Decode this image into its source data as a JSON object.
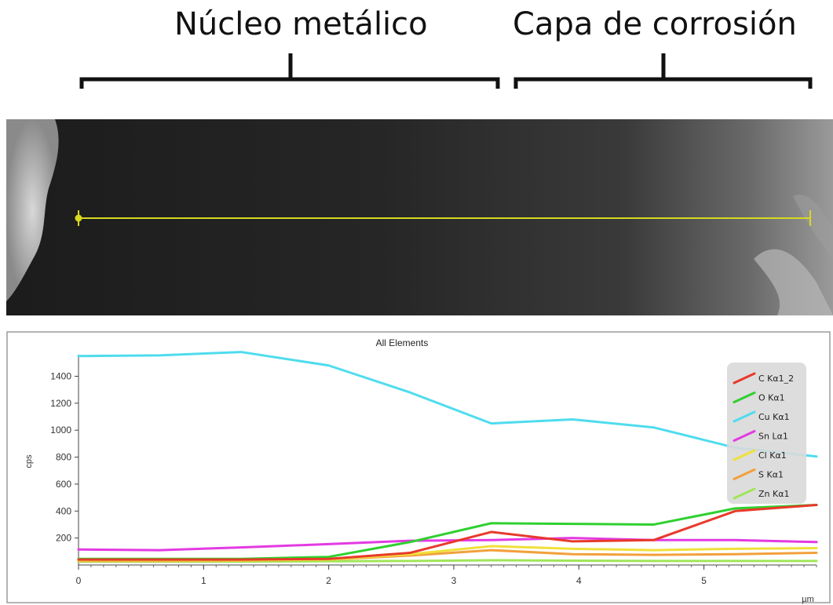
{
  "annotations": {
    "core_label": "Núcleo metálico",
    "corrosion_label": "Capa de corrosión"
  },
  "chart_data": {
    "type": "line",
    "title": "All Elements",
    "xlabel": "µm",
    "ylabel": "cps",
    "xlim": [
      0,
      5.9
    ],
    "ylim": [
      0,
      1560
    ],
    "x_ticks": [
      "0",
      "1",
      "2",
      "3",
      "4",
      "5"
    ],
    "y_ticks": [
      "200",
      "400",
      "600",
      "800",
      "1000",
      "1200",
      "1400"
    ],
    "legend_position": "right",
    "x": [
      0,
      0.65,
      1.3,
      2.0,
      2.65,
      3.3,
      3.95,
      4.6,
      5.25,
      5.9
    ],
    "series": [
      {
        "name": "C Kα1_2",
        "color": "#e8392b",
        "values": [
          40,
          40,
          40,
          45,
          90,
          245,
          175,
          185,
          400,
          445
        ]
      },
      {
        "name": "O Kα1",
        "color": "#2fd02f",
        "values": [
          45,
          45,
          45,
          60,
          170,
          310,
          305,
          300,
          420,
          445
        ]
      },
      {
        "name": "Cu Kα1",
        "color": "#4fdcee",
        "values": [
          1550,
          1555,
          1580,
          1480,
          1280,
          1050,
          1080,
          1020,
          870,
          805
        ]
      },
      {
        "name": "Sn Lα1",
        "color": "#e33ae3",
        "values": [
          115,
          110,
          130,
          155,
          180,
          185,
          200,
          185,
          185,
          170
        ]
      },
      {
        "name": "Cl Kα1",
        "color": "#f0e03a",
        "values": [
          35,
          35,
          35,
          40,
          80,
          140,
          120,
          110,
          120,
          125
        ]
      },
      {
        "name": "S Kα1",
        "color": "#f2a03c",
        "values": [
          30,
          30,
          32,
          40,
          70,
          110,
          80,
          75,
          80,
          90
        ]
      },
      {
        "name": "Zn Kα1",
        "color": "#9fe65a",
        "values": [
          25,
          25,
          25,
          28,
          30,
          35,
          32,
          30,
          30,
          30
        ]
      }
    ]
  }
}
